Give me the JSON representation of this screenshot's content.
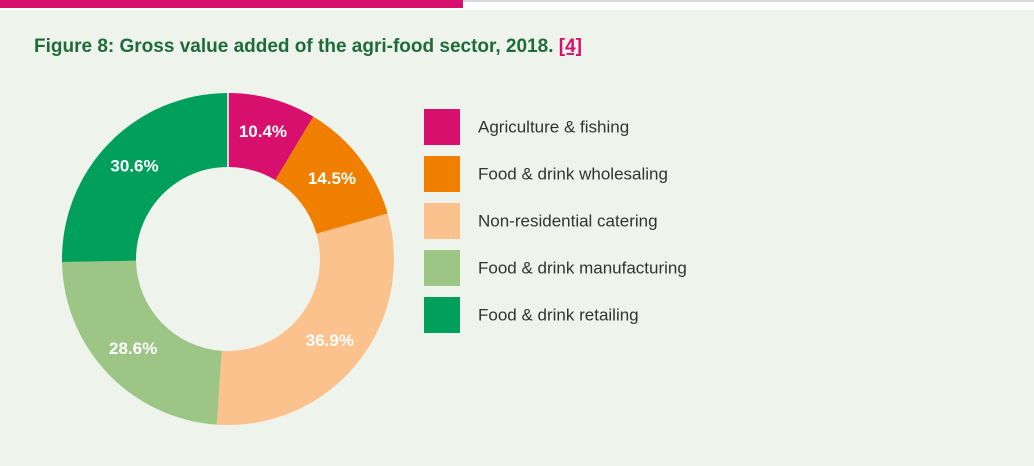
{
  "chart_data": {
    "type": "donut",
    "title": "Figure 8: Gross value added of the agri-food sector, 2018.",
    "title_ref": "[4]",
    "categories": [
      "Agriculture & fishing",
      "Food & drink wholesaling",
      "Non-residential catering",
      "Food & drink manufacturing",
      "Food & drink retailing"
    ],
    "values": [
      10.4,
      14.5,
      36.9,
      28.6,
      30.6
    ],
    "value_labels": [
      "10.4%",
      "14.5%",
      "36.9%",
      "28.6%",
      "30.6%"
    ],
    "colors": [
      "#d6106c",
      "#f07f00",
      "#fbc28e",
      "#9dc686",
      "#009f5c"
    ],
    "legend": "right"
  }
}
